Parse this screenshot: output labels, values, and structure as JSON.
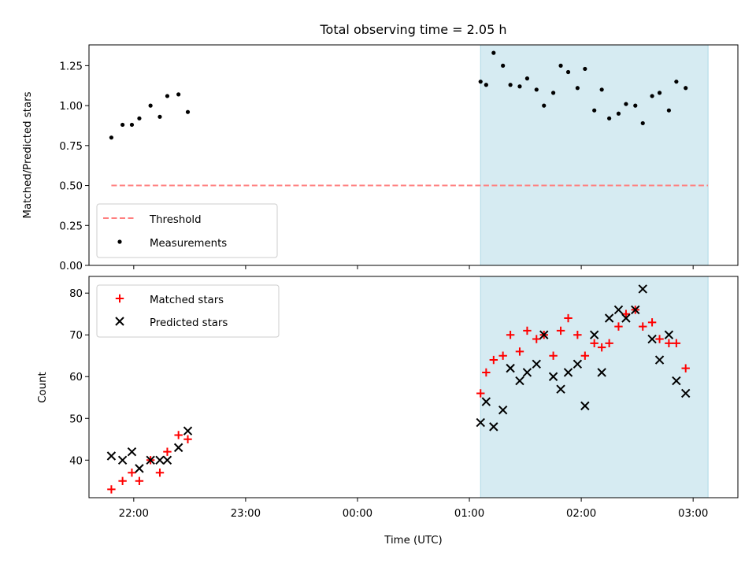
{
  "title": "Total observing time = 2.05 h",
  "colors": {
    "shade": "#add8e6",
    "threshold": "#ff7f7f",
    "measurement": "#000000",
    "matched": "#ff0000",
    "predicted": "#000000"
  },
  "chart_data": [
    {
      "type": "scatter",
      "ylabel": "Matched/Predicted stars",
      "xlim": [
        "21:36",
        "03:24"
      ],
      "ylim": [
        0,
        1.38
      ],
      "x_tick_labels": [
        "22:00",
        "23:00",
        "00:00",
        "01:00",
        "02:00",
        "03:00"
      ],
      "y_ticks": [
        "0.00",
        "0.25",
        "0.50",
        "0.75",
        "1.00",
        "1.25"
      ],
      "shaded_interval": [
        "01:06",
        "03:08"
      ],
      "legend": {
        "location": "lower left",
        "entries": [
          "Threshold",
          "Measurements"
        ]
      },
      "threshold": {
        "name": "Threshold",
        "y": 0.5,
        "x_range": [
          "21:48",
          "03:08"
        ],
        "style": "dashed"
      },
      "measurements": {
        "name": "Measurements",
        "points": [
          [
            "21:48",
            0.8
          ],
          [
            "21:54",
            0.88
          ],
          [
            "21:59",
            0.88
          ],
          [
            "22:03",
            0.92
          ],
          [
            "22:09",
            1.0
          ],
          [
            "22:14",
            0.93
          ],
          [
            "22:18",
            1.06
          ],
          [
            "22:24",
            1.07
          ],
          [
            "22:29",
            0.96
          ],
          [
            "01:06",
            1.15
          ],
          [
            "01:09",
            1.13
          ],
          [
            "01:13",
            1.33
          ],
          [
            "01:18",
            1.25
          ],
          [
            "01:22",
            1.13
          ],
          [
            "01:27",
            1.12
          ],
          [
            "01:31",
            1.17
          ],
          [
            "01:36",
            1.1
          ],
          [
            "01:40",
            1.0
          ],
          [
            "01:45",
            1.08
          ],
          [
            "01:49",
            1.25
          ],
          [
            "01:53",
            1.21
          ],
          [
            "01:58",
            1.11
          ],
          [
            "02:02",
            1.23
          ],
          [
            "02:07",
            0.97
          ],
          [
            "02:11",
            1.1
          ],
          [
            "02:15",
            0.92
          ],
          [
            "02:20",
            0.95
          ],
          [
            "02:24",
            1.01
          ],
          [
            "02:29",
            1.0
          ],
          [
            "02:33",
            0.89
          ],
          [
            "02:38",
            1.06
          ],
          [
            "02:42",
            1.08
          ],
          [
            "02:47",
            0.97
          ],
          [
            "02:51",
            1.15
          ],
          [
            "02:56",
            1.11
          ]
        ]
      }
    },
    {
      "type": "scatter",
      "xlabel": "Time (UTC)",
      "ylabel": "Count",
      "xlim": [
        "21:36",
        "03:24"
      ],
      "ylim": [
        31,
        84
      ],
      "x_tick_labels": [
        "22:00",
        "23:00",
        "00:00",
        "01:00",
        "02:00",
        "03:00"
      ],
      "y_ticks": [
        "40",
        "50",
        "60",
        "70",
        "80"
      ],
      "shaded_interval": [
        "01:06",
        "03:08"
      ],
      "legend": {
        "location": "upper left",
        "entries": [
          "Matched stars",
          "Predicted stars"
        ]
      },
      "series": [
        {
          "name": "Matched stars",
          "marker": "plus",
          "points": [
            [
              "21:48",
              33
            ],
            [
              "21:54",
              35
            ],
            [
              "21:59",
              37
            ],
            [
              "22:03",
              35
            ],
            [
              "22:09",
              40
            ],
            [
              "22:14",
              37
            ],
            [
              "22:18",
              42
            ],
            [
              "22:24",
              46
            ],
            [
              "22:29",
              45
            ],
            [
              "01:06",
              56
            ],
            [
              "01:09",
              61
            ],
            [
              "01:13",
              64
            ],
            [
              "01:18",
              65
            ],
            [
              "01:22",
              70
            ],
            [
              "01:27",
              66
            ],
            [
              "01:31",
              71
            ],
            [
              "01:36",
              69
            ],
            [
              "01:40",
              70
            ],
            [
              "01:45",
              65
            ],
            [
              "01:49",
              71
            ],
            [
              "01:53",
              74
            ],
            [
              "01:58",
              70
            ],
            [
              "02:02",
              65
            ],
            [
              "02:07",
              68
            ],
            [
              "02:11",
              67
            ],
            [
              "02:15",
              68
            ],
            [
              "02:20",
              72
            ],
            [
              "02:24",
              75
            ],
            [
              "02:29",
              76
            ],
            [
              "02:33",
              72
            ],
            [
              "02:38",
              73
            ],
            [
              "02:42",
              69
            ],
            [
              "02:47",
              68
            ],
            [
              "02:51",
              68
            ],
            [
              "02:56",
              62
            ]
          ]
        },
        {
          "name": "Predicted stars",
          "marker": "x",
          "points": [
            [
              "21:48",
              41
            ],
            [
              "21:54",
              40
            ],
            [
              "21:59",
              42
            ],
            [
              "22:03",
              38
            ],
            [
              "22:09",
              40
            ],
            [
              "22:14",
              40
            ],
            [
              "22:18",
              40
            ],
            [
              "22:24",
              43
            ],
            [
              "22:29",
              47
            ],
            [
              "01:06",
              49
            ],
            [
              "01:09",
              54
            ],
            [
              "01:13",
              48
            ],
            [
              "01:18",
              52
            ],
            [
              "01:22",
              62
            ],
            [
              "01:27",
              59
            ],
            [
              "01:31",
              61
            ],
            [
              "01:36",
              63
            ],
            [
              "01:40",
              70
            ],
            [
              "01:45",
              60
            ],
            [
              "01:49",
              57
            ],
            [
              "01:53",
              61
            ],
            [
              "01:58",
              63
            ],
            [
              "02:02",
              53
            ],
            [
              "02:07",
              70
            ],
            [
              "02:11",
              61
            ],
            [
              "02:15",
              74
            ],
            [
              "02:20",
              76
            ],
            [
              "02:24",
              74
            ],
            [
              "02:29",
              76
            ],
            [
              "02:33",
              81
            ],
            [
              "02:38",
              69
            ],
            [
              "02:42",
              64
            ],
            [
              "02:47",
              70
            ],
            [
              "02:51",
              59
            ],
            [
              "02:56",
              56
            ]
          ]
        }
      ]
    }
  ]
}
